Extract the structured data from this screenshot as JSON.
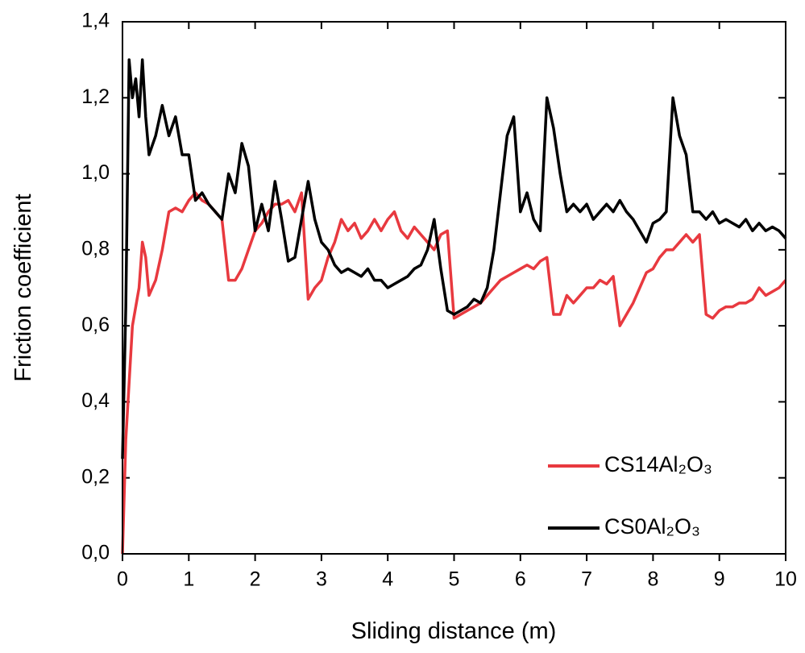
{
  "chart_data": {
    "type": "line",
    "x_label": "Sliding distance (m)",
    "y_label": "Friction coefficient",
    "xlim": [
      0,
      10
    ],
    "ylim": [
      0,
      1.4
    ],
    "xticks": [
      0,
      1,
      2,
      3,
      4,
      5,
      6,
      7,
      8,
      9,
      10
    ],
    "yticks": [
      {
        "value": 0,
        "label": "0,0"
      },
      {
        "value": 0.2,
        "label": "0,2"
      },
      {
        "value": 0.4,
        "label": "0,4"
      },
      {
        "value": 0.6,
        "label": "0,6"
      },
      {
        "value": 0.8,
        "label": "0,8"
      },
      {
        "value": 1.0,
        "label": "1,0"
      },
      {
        "value": 1.2,
        "label": "1,2"
      },
      {
        "value": 1.4,
        "label": "1,4"
      }
    ],
    "legend": "lower right",
    "x": [
      0,
      0.05,
      0.1,
      0.15,
      0.2,
      0.25,
      0.3,
      0.35,
      0.4,
      0.5,
      0.6,
      0.7,
      0.8,
      0.9,
      1.0,
      1.1,
      1.2,
      1.3,
      1.4,
      1.5,
      1.6,
      1.7,
      1.8,
      1.9,
      2.0,
      2.1,
      2.2,
      2.3,
      2.4,
      2.5,
      2.6,
      2.7,
      2.8,
      2.9,
      3.0,
      3.1,
      3.2,
      3.3,
      3.4,
      3.5,
      3.6,
      3.7,
      3.8,
      3.9,
      4.0,
      4.1,
      4.2,
      4.3,
      4.4,
      4.5,
      4.6,
      4.7,
      4.8,
      4.9,
      5.0,
      5.1,
      5.2,
      5.3,
      5.4,
      5.5,
      5.6,
      5.7,
      5.8,
      5.9,
      6.0,
      6.1,
      6.2,
      6.3,
      6.4,
      6.5,
      6.6,
      6.7,
      6.8,
      6.9,
      7.0,
      7.1,
      7.2,
      7.3,
      7.4,
      7.5,
      7.6,
      7.7,
      7.8,
      7.9,
      8.0,
      8.1,
      8.2,
      8.3,
      8.4,
      8.5,
      8.6,
      8.7,
      8.8,
      8.9,
      9.0,
      9.1,
      9.2,
      9.3,
      9.4,
      9.5,
      9.6,
      9.7,
      9.8,
      9.9,
      10.0
    ],
    "series": [
      {
        "name": "CS14Al₂O₃",
        "color": "#e8393f",
        "values": [
          0.0,
          0.3,
          0.45,
          0.6,
          0.65,
          0.7,
          0.82,
          0.78,
          0.68,
          0.72,
          0.8,
          0.9,
          0.91,
          0.9,
          0.93,
          0.95,
          0.93,
          0.92,
          0.9,
          0.88,
          0.72,
          0.72,
          0.75,
          0.8,
          0.85,
          0.87,
          0.9,
          0.92,
          0.92,
          0.93,
          0.9,
          0.95,
          0.67,
          0.7,
          0.72,
          0.78,
          0.82,
          0.88,
          0.85,
          0.87,
          0.83,
          0.85,
          0.88,
          0.85,
          0.88,
          0.9,
          0.85,
          0.83,
          0.86,
          0.84,
          0.82,
          0.8,
          0.84,
          0.85,
          0.62,
          0.63,
          0.64,
          0.65,
          0.66,
          0.68,
          0.7,
          0.72,
          0.73,
          0.74,
          0.75,
          0.76,
          0.75,
          0.77,
          0.78,
          0.63,
          0.63,
          0.68,
          0.66,
          0.68,
          0.7,
          0.7,
          0.72,
          0.71,
          0.73,
          0.6,
          0.63,
          0.66,
          0.7,
          0.74,
          0.75,
          0.78,
          0.8,
          0.8,
          0.82,
          0.84,
          0.82,
          0.84,
          0.63,
          0.62,
          0.64,
          0.65,
          0.65,
          0.66,
          0.66,
          0.67,
          0.7,
          0.68,
          0.69,
          0.7,
          0.72
        ]
      },
      {
        "name": "CS0Al₂O₃",
        "color": "#000000",
        "values": [
          0.25,
          0.65,
          1.3,
          1.2,
          1.25,
          1.15,
          1.3,
          1.15,
          1.05,
          1.1,
          1.18,
          1.1,
          1.15,
          1.05,
          1.05,
          0.93,
          0.95,
          0.92,
          0.9,
          0.88,
          1.0,
          0.95,
          1.08,
          1.02,
          0.85,
          0.92,
          0.85,
          0.98,
          0.88,
          0.77,
          0.78,
          0.88,
          0.98,
          0.88,
          0.82,
          0.8,
          0.76,
          0.74,
          0.75,
          0.74,
          0.73,
          0.75,
          0.72,
          0.72,
          0.7,
          0.71,
          0.72,
          0.73,
          0.75,
          0.76,
          0.8,
          0.88,
          0.75,
          0.64,
          0.63,
          0.64,
          0.65,
          0.67,
          0.66,
          0.7,
          0.8,
          0.95,
          1.1,
          1.15,
          0.9,
          0.95,
          0.88,
          0.85,
          1.2,
          1.12,
          1.0,
          0.9,
          0.92,
          0.9,
          0.92,
          0.88,
          0.9,
          0.92,
          0.9,
          0.93,
          0.9,
          0.88,
          0.85,
          0.82,
          0.87,
          0.88,
          0.9,
          1.2,
          1.1,
          1.05,
          0.9,
          0.9,
          0.88,
          0.9,
          0.87,
          0.88,
          0.87,
          0.86,
          0.88,
          0.85,
          0.87,
          0.85,
          0.86,
          0.85,
          0.83
        ]
      }
    ]
  }
}
